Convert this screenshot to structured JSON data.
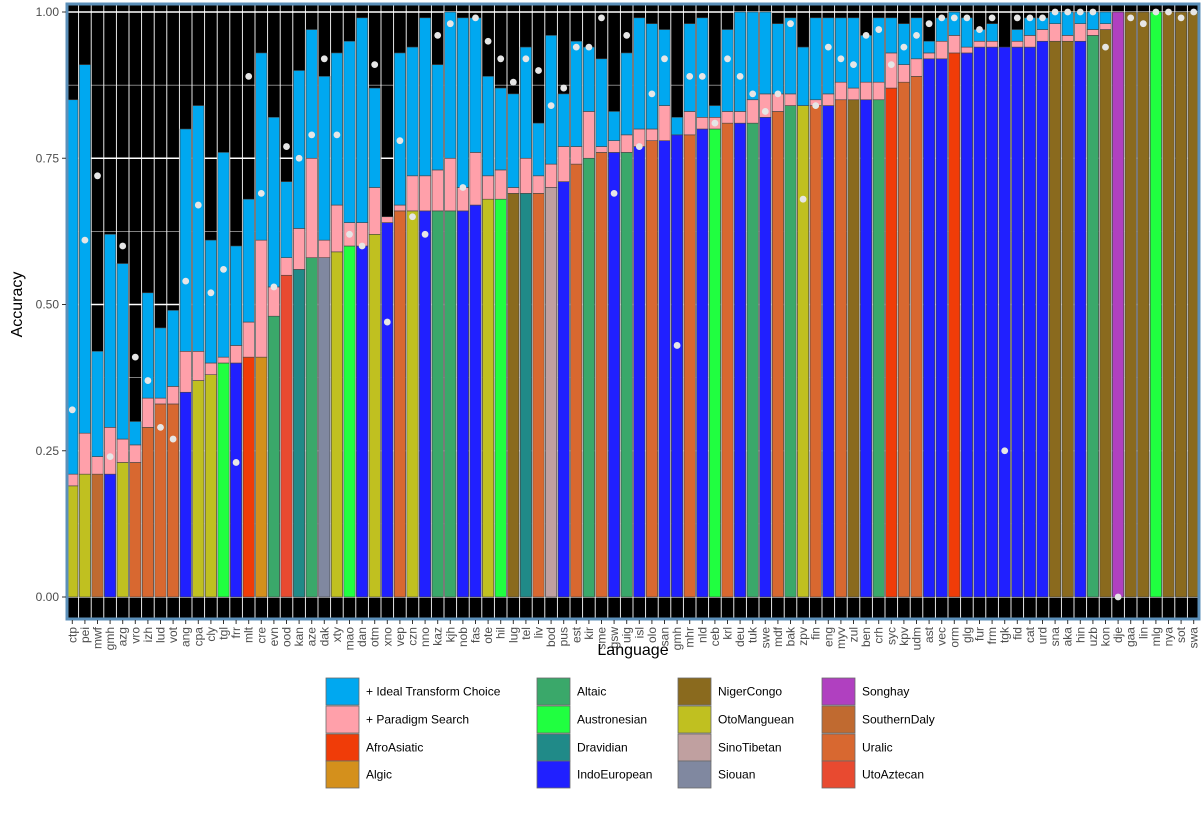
{
  "chart_data": {
    "type": "bar",
    "xlabel": "Language",
    "ylabel": "Accuracy",
    "ylim": [
      0,
      1.03
    ],
    "yticks": [
      "0.00",
      "0.25",
      "0.50",
      "0.75",
      "1.00"
    ],
    "grid": true,
    "legend_position": "bottom",
    "colors": {
      "panel_background": "#000000",
      "gridline": "#ffffff",
      "panel_border": "#5b8fb9",
      "point": "#e6e6e6",
      "+ Ideal Transform Choice": "#00a8f0",
      "+ Paradigm Search": "#ffa0aa",
      "AfroAsiatic": "#f03c08",
      "Algic": "#d4901c",
      "Altaic": "#3aa86a",
      "Austronesian": "#20ff40",
      "Dravidian": "#208a88",
      "IndoEuropean": "#2020ff",
      "NigerCongo": "#8a6a1e",
      "OtoManguean": "#c0c020",
      "SinoTibetan": "#c0a0a0",
      "Siouan": "#8088a0",
      "Songhay": "#b040c0",
      "SouthernDaly": "#c06a30",
      "Uralic": "#d86830",
      "UtoAztecan": "#e84a30"
    },
    "legend": [
      "+ Ideal Transform Choice",
      "+ Paradigm Search",
      "AfroAsiatic",
      "Algic",
      "Altaic",
      "Austronesian",
      "Dravidian",
      "IndoEuropean",
      "NigerCongo",
      "OtoManguean",
      "SinoTibetan",
      "Siouan",
      "Songhay",
      "SouthernDaly",
      "Uralic",
      "UtoAztecan"
    ],
    "series_names": [
      "base",
      "+ Paradigm Search",
      "+ Ideal Transform Choice",
      "points"
    ],
    "languages": [
      {
        "lang": "ctp",
        "family": "OtoManguean",
        "base": 0.19,
        "paradigm": 0.21,
        "ideal": 0.85,
        "point": 0.32
      },
      {
        "lang": "pei",
        "family": "OtoManguean",
        "base": 0.21,
        "paradigm": 0.28,
        "ideal": 0.91,
        "point": 0.61
      },
      {
        "lang": "mwf",
        "family": "SouthernDaly",
        "base": 0.21,
        "paradigm": 0.24,
        "ideal": 0.42,
        "point": 0.72
      },
      {
        "lang": "gmh",
        "family": "IndoEuropean",
        "base": 0.21,
        "paradigm": 0.29,
        "ideal": 0.62,
        "point": 0.24
      },
      {
        "lang": "azg",
        "family": "OtoManguean",
        "base": 0.23,
        "paradigm": 0.27,
        "ideal": 0.57,
        "point": 0.6
      },
      {
        "lang": "vro",
        "family": "Uralic",
        "base": 0.23,
        "paradigm": 0.26,
        "ideal": 0.3,
        "point": 0.41
      },
      {
        "lang": "izh",
        "family": "Uralic",
        "base": 0.29,
        "paradigm": 0.34,
        "ideal": 0.52,
        "point": 0.37
      },
      {
        "lang": "lud",
        "family": "Uralic",
        "base": 0.33,
        "paradigm": 0.34,
        "ideal": 0.46,
        "point": 0.29
      },
      {
        "lang": "vot",
        "family": "Uralic",
        "base": 0.33,
        "paradigm": 0.36,
        "ideal": 0.49,
        "point": 0.27
      },
      {
        "lang": "ang",
        "family": "IndoEuropean",
        "base": 0.35,
        "paradigm": 0.42,
        "ideal": 0.8,
        "point": 0.54
      },
      {
        "lang": "cpa",
        "family": "OtoManguean",
        "base": 0.37,
        "paradigm": 0.42,
        "ideal": 0.84,
        "point": 0.67
      },
      {
        "lang": "cly",
        "family": "OtoManguean",
        "base": 0.38,
        "paradigm": 0.4,
        "ideal": 0.61,
        "point": 0.52
      },
      {
        "lang": "tgl",
        "family": "Austronesian",
        "base": 0.4,
        "paradigm": 0.41,
        "ideal": 0.76,
        "point": 0.56
      },
      {
        "lang": "frr",
        "family": "IndoEuropean",
        "base": 0.4,
        "paradigm": 0.43,
        "ideal": 0.6,
        "point": 0.23
      },
      {
        "lang": "mlt",
        "family": "AfroAsiatic",
        "base": 0.41,
        "paradigm": 0.47,
        "ideal": 0.68,
        "point": 0.89
      },
      {
        "lang": "cre",
        "family": "Algic",
        "base": 0.41,
        "paradigm": 0.61,
        "ideal": 0.93,
        "point": 0.69
      },
      {
        "lang": "evn",
        "family": "Altaic",
        "base": 0.48,
        "paradigm": 0.53,
        "ideal": 0.82,
        "point": 0.53
      },
      {
        "lang": "ood",
        "family": "UtoAztecan",
        "base": 0.55,
        "paradigm": 0.58,
        "ideal": 0.71,
        "point": 0.77
      },
      {
        "lang": "kan",
        "family": "Dravidian",
        "base": 0.56,
        "paradigm": 0.63,
        "ideal": 0.9,
        "point": 0.75
      },
      {
        "lang": "aze",
        "family": "Altaic",
        "base": 0.58,
        "paradigm": 0.75,
        "ideal": 0.97,
        "point": 0.79
      },
      {
        "lang": "dak",
        "family": "Siouan",
        "base": 0.58,
        "paradigm": 0.61,
        "ideal": 0.89,
        "point": 0.92
      },
      {
        "lang": "xty",
        "family": "OtoManguean",
        "base": 0.59,
        "paradigm": 0.67,
        "ideal": 0.93,
        "point": 0.79
      },
      {
        "lang": "mao",
        "family": "Austronesian",
        "base": 0.6,
        "paradigm": 0.64,
        "ideal": 0.95,
        "point": 0.62
      },
      {
        "lang": "dan",
        "family": "IndoEuropean",
        "base": 0.6,
        "paradigm": 0.64,
        "ideal": 0.99,
        "point": 0.6
      },
      {
        "lang": "otm",
        "family": "OtoManguean",
        "base": 0.62,
        "paradigm": 0.7,
        "ideal": 0.87,
        "point": 0.91
      },
      {
        "lang": "xno",
        "family": "IndoEuropean",
        "base": 0.64,
        "paradigm": 0.65,
        "ideal": 0.65,
        "point": 0.47
      },
      {
        "lang": "vep",
        "family": "Uralic",
        "base": 0.66,
        "paradigm": 0.67,
        "ideal": 0.93,
        "point": 0.78
      },
      {
        "lang": "czn",
        "family": "OtoManguean",
        "base": 0.66,
        "paradigm": 0.72,
        "ideal": 0.94,
        "point": 0.65
      },
      {
        "lang": "nno",
        "family": "IndoEuropean",
        "base": 0.66,
        "paradigm": 0.72,
        "ideal": 0.99,
        "point": 0.62
      },
      {
        "lang": "kaz",
        "family": "Altaic",
        "base": 0.66,
        "paradigm": 0.73,
        "ideal": 0.91,
        "point": 0.96
      },
      {
        "lang": "kjh",
        "family": "Altaic",
        "base": 0.66,
        "paradigm": 0.75,
        "ideal": 1.0,
        "point": 0.98
      },
      {
        "lang": "nob",
        "family": "IndoEuropean",
        "base": 0.66,
        "paradigm": 0.7,
        "ideal": 0.99,
        "point": 0.7
      },
      {
        "lang": "fas",
        "family": "IndoEuropean",
        "base": 0.67,
        "paradigm": 0.76,
        "ideal": 0.99,
        "point": 0.99
      },
      {
        "lang": "ote",
        "family": "OtoManguean",
        "base": 0.68,
        "paradigm": 0.72,
        "ideal": 0.89,
        "point": 0.95
      },
      {
        "lang": "hil",
        "family": "Austronesian",
        "base": 0.68,
        "paradigm": 0.73,
        "ideal": 0.87,
        "point": 0.92
      },
      {
        "lang": "lug",
        "family": "NigerCongo",
        "base": 0.69,
        "paradigm": 0.7,
        "ideal": 0.86,
        "point": 0.88
      },
      {
        "lang": "tel",
        "family": "Dravidian",
        "base": 0.69,
        "paradigm": 0.75,
        "ideal": 0.94,
        "point": 0.92
      },
      {
        "lang": "liv",
        "family": "Uralic",
        "base": 0.69,
        "paradigm": 0.72,
        "ideal": 0.81,
        "point": 0.9
      },
      {
        "lang": "bod",
        "family": "SinoTibetan",
        "base": 0.7,
        "paradigm": 0.74,
        "ideal": 0.96,
        "point": 0.84
      },
      {
        "lang": "pus",
        "family": "IndoEuropean",
        "base": 0.71,
        "paradigm": 0.77,
        "ideal": 0.86,
        "point": 0.87
      },
      {
        "lang": "est",
        "family": "Uralic",
        "base": 0.74,
        "paradigm": 0.77,
        "ideal": 0.95,
        "point": 0.94
      },
      {
        "lang": "kir",
        "family": "Altaic",
        "base": 0.75,
        "paradigm": 0.83,
        "ideal": 0.94,
        "point": 0.94
      },
      {
        "lang": "sme",
        "family": "Uralic",
        "base": 0.76,
        "paradigm": 0.77,
        "ideal": 0.92,
        "point": 0.99
      },
      {
        "lang": "gsw",
        "family": "IndoEuropean",
        "base": 0.76,
        "paradigm": 0.78,
        "ideal": 0.83,
        "point": 0.69
      },
      {
        "lang": "uig",
        "family": "Altaic",
        "base": 0.76,
        "paradigm": 0.79,
        "ideal": 0.93,
        "point": 0.96
      },
      {
        "lang": "isl",
        "family": "IndoEuropean",
        "base": 0.77,
        "paradigm": 0.8,
        "ideal": 0.99,
        "point": 0.77
      },
      {
        "lang": "olo",
        "family": "Uralic",
        "base": 0.78,
        "paradigm": 0.8,
        "ideal": 0.98,
        "point": 0.86
      },
      {
        "lang": "san",
        "family": "IndoEuropean",
        "base": 0.78,
        "paradigm": 0.84,
        "ideal": 0.97,
        "point": 0.92
      },
      {
        "lang": "gmh",
        "family": "IndoEuropean",
        "base": 0.79,
        "paradigm": 0.79,
        "ideal": 0.82,
        "point": 0.43
      },
      {
        "lang": "mhr",
        "family": "Uralic",
        "base": 0.79,
        "paradigm": 0.83,
        "ideal": 0.98,
        "point": 0.89
      },
      {
        "lang": "nld",
        "family": "IndoEuropean",
        "base": 0.8,
        "paradigm": 0.82,
        "ideal": 0.99,
        "point": 0.89
      },
      {
        "lang": "ceb",
        "family": "Austronesian",
        "base": 0.8,
        "paradigm": 0.82,
        "ideal": 0.84,
        "point": 0.81
      },
      {
        "lang": "krl",
        "family": "Uralic",
        "base": 0.81,
        "paradigm": 0.83,
        "ideal": 0.97,
        "point": 0.92
      },
      {
        "lang": "deu",
        "family": "IndoEuropean",
        "base": 0.81,
        "paradigm": 0.83,
        "ideal": 1.0,
        "point": 0.89
      },
      {
        "lang": "tuk",
        "family": "Altaic",
        "base": 0.81,
        "paradigm": 0.85,
        "ideal": 1.0,
        "point": 0.86
      },
      {
        "lang": "swe",
        "family": "IndoEuropean",
        "base": 0.82,
        "paradigm": 0.86,
        "ideal": 1.0,
        "point": 0.83
      },
      {
        "lang": "mdf",
        "family": "Uralic",
        "base": 0.83,
        "paradigm": 0.86,
        "ideal": 0.98,
        "point": 0.86
      },
      {
        "lang": "bak",
        "family": "Altaic",
        "base": 0.84,
        "paradigm": 0.86,
        "ideal": 0.99,
        "point": 0.98
      },
      {
        "lang": "zpv",
        "family": "OtoManguean",
        "base": 0.84,
        "paradigm": 0.84,
        "ideal": 0.94,
        "point": 0.68
      },
      {
        "lang": "fin",
        "family": "Uralic",
        "base": 0.84,
        "paradigm": 0.85,
        "ideal": 0.99,
        "point": 0.84
      },
      {
        "lang": "eng",
        "family": "IndoEuropean",
        "base": 0.84,
        "paradigm": 0.86,
        "ideal": 0.99,
        "point": 0.94
      },
      {
        "lang": "myv",
        "family": "Uralic",
        "base": 0.85,
        "paradigm": 0.88,
        "ideal": 0.99,
        "point": 0.92
      },
      {
        "lang": "zul",
        "family": "NigerCongo",
        "base": 0.85,
        "paradigm": 0.87,
        "ideal": 0.99,
        "point": 0.91
      },
      {
        "lang": "ben",
        "family": "IndoEuropean",
        "base": 0.85,
        "paradigm": 0.88,
        "ideal": 0.96,
        "point": 0.96
      },
      {
        "lang": "crh",
        "family": "Altaic",
        "base": 0.85,
        "paradigm": 0.88,
        "ideal": 0.99,
        "point": 0.97
      },
      {
        "lang": "syc",
        "family": "AfroAsiatic",
        "base": 0.87,
        "paradigm": 0.93,
        "ideal": 0.99,
        "point": 0.91
      },
      {
        "lang": "kpv",
        "family": "Uralic",
        "base": 0.88,
        "paradigm": 0.91,
        "ideal": 0.98,
        "point": 0.94
      },
      {
        "lang": "udm",
        "family": "Uralic",
        "base": 0.89,
        "paradigm": 0.92,
        "ideal": 0.99,
        "point": 0.96
      },
      {
        "lang": "ast",
        "family": "IndoEuropean",
        "base": 0.92,
        "paradigm": 0.93,
        "ideal": 0.95,
        "point": 0.98
      },
      {
        "lang": "vec",
        "family": "IndoEuropean",
        "base": 0.92,
        "paradigm": 0.95,
        "ideal": 0.99,
        "point": 0.99
      },
      {
        "lang": "orm",
        "family": "AfroAsiatic",
        "base": 0.93,
        "paradigm": 0.96,
        "ideal": 1.0,
        "point": 0.99
      },
      {
        "lang": "glg",
        "family": "IndoEuropean",
        "base": 0.93,
        "paradigm": 0.94,
        "ideal": 0.99,
        "point": 0.99
      },
      {
        "lang": "fur",
        "family": "IndoEuropean",
        "base": 0.94,
        "paradigm": 0.95,
        "ideal": 0.97,
        "point": 0.97
      },
      {
        "lang": "frm",
        "family": "IndoEuropean",
        "base": 0.94,
        "paradigm": 0.95,
        "ideal": 0.98,
        "point": 0.99
      },
      {
        "lang": "tgk",
        "family": "IndoEuropean",
        "base": 0.94,
        "paradigm": 0.94,
        "ideal": 0.94,
        "point": 0.25
      },
      {
        "lang": "fid",
        "family": "IndoEuropean",
        "base": 0.94,
        "paradigm": 0.95,
        "ideal": 0.97,
        "point": 0.99
      },
      {
        "lang": "cat",
        "family": "IndoEuropean",
        "base": 0.94,
        "paradigm": 0.96,
        "ideal": 0.99,
        "point": 0.99
      },
      {
        "lang": "urd",
        "family": "IndoEuropean",
        "base": 0.95,
        "paradigm": 0.97,
        "ideal": 0.99,
        "point": 0.99
      },
      {
        "lang": "sna",
        "family": "NigerCongo",
        "base": 0.95,
        "paradigm": 0.98,
        "ideal": 1.0,
        "point": 1.0
      },
      {
        "lang": "aka",
        "family": "NigerCongo",
        "base": 0.95,
        "paradigm": 0.96,
        "ideal": 1.0,
        "point": 1.0
      },
      {
        "lang": "hin",
        "family": "IndoEuropean",
        "base": 0.95,
        "paradigm": 0.98,
        "ideal": 1.0,
        "point": 1.0
      },
      {
        "lang": "uzb",
        "family": "Altaic",
        "base": 0.96,
        "paradigm": 0.97,
        "ideal": 1.0,
        "point": 1.0
      },
      {
        "lang": "kon",
        "family": "NigerCongo",
        "base": 0.97,
        "paradigm": 0.98,
        "ideal": 1.0,
        "point": 0.94
      },
      {
        "lang": "dje",
        "family": "Songhay",
        "base": 1.0,
        "paradigm": 1.0,
        "ideal": 1.0,
        "point": 0.0
      },
      {
        "lang": "gaa",
        "family": "NigerCongo",
        "base": 1.0,
        "paradigm": 1.0,
        "ideal": 1.0,
        "point": 0.99
      },
      {
        "lang": "lin",
        "family": "NigerCongo",
        "base": 1.0,
        "paradigm": 1.0,
        "ideal": 1.0,
        "point": 0.98
      },
      {
        "lang": "mlg",
        "family": "Austronesian",
        "base": 1.0,
        "paradigm": 1.0,
        "ideal": 1.0,
        "point": 1.0
      },
      {
        "lang": "nya",
        "family": "NigerCongo",
        "base": 1.0,
        "paradigm": 1.0,
        "ideal": 1.0,
        "point": 1.0
      },
      {
        "lang": "sot",
        "family": "NigerCongo",
        "base": 1.0,
        "paradigm": 1.0,
        "ideal": 1.0,
        "point": 0.99
      },
      {
        "lang": "swa",
        "family": "NigerCongo",
        "base": 1.0,
        "paradigm": 1.0,
        "ideal": 1.0,
        "point": 1.0
      }
    ]
  }
}
